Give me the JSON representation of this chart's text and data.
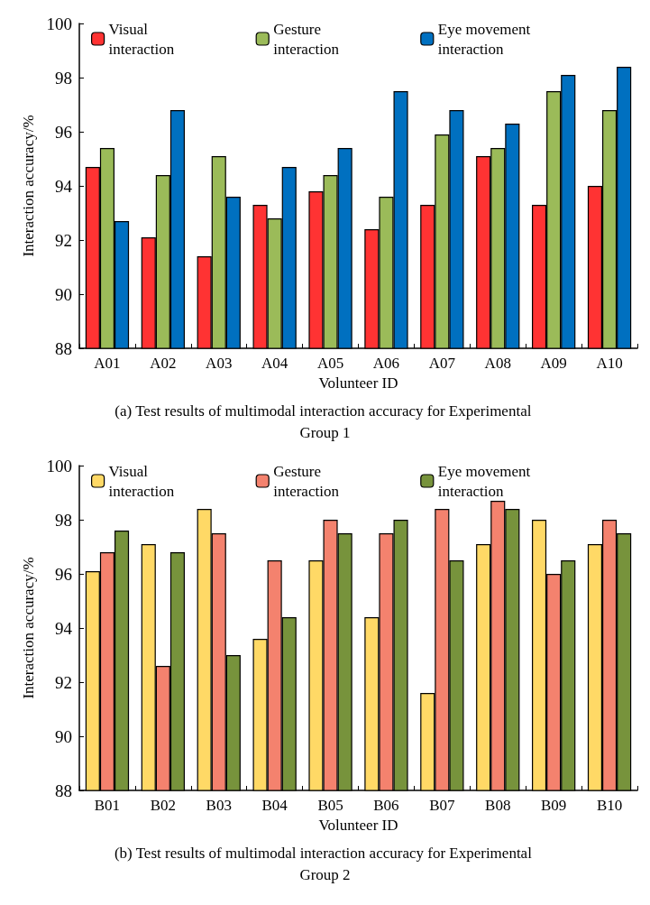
{
  "chart_data": [
    {
      "type": "bar",
      "title": "(a) Test results of multimodal interaction accuracy for Experimental Group 1",
      "xlabel": "Volunteer ID",
      "ylabel": "Interaction accuracy/%",
      "categories": [
        "A01",
        "A02",
        "A03",
        "A04",
        "A05",
        "A06",
        "A07",
        "A08",
        "A09",
        "A10"
      ],
      "series": [
        {
          "name": "Visual interaction",
          "color": "#ff3333",
          "values": [
            94.7,
            92.1,
            91.4,
            93.3,
            93.8,
            92.4,
            93.3,
            95.1,
            93.3,
            94.0
          ]
        },
        {
          "name": "Gesture interaction",
          "color": "#9bbb59",
          "values": [
            95.4,
            94.4,
            95.1,
            92.8,
            94.4,
            93.6,
            95.9,
            95.4,
            97.5,
            96.8
          ]
        },
        {
          "name": "Eye movement interaction",
          "color": "#0070c0",
          "values": [
            92.7,
            96.8,
            93.6,
            94.7,
            95.4,
            97.5,
            96.8,
            96.3,
            98.1,
            98.4
          ]
        }
      ],
      "ylim": [
        88,
        100
      ],
      "yticks": [
        88,
        90,
        92,
        94,
        96,
        98,
        100
      ],
      "grid": false,
      "legend": "top"
    },
    {
      "type": "bar",
      "title": "(b) Test results of multimodal interaction accuracy for Experimental Group 2",
      "xlabel": "Volunteer ID",
      "ylabel": "Interaction accuracy/%",
      "categories": [
        "B01",
        "B02",
        "B03",
        "B04",
        "B05",
        "B06",
        "B07",
        "B08",
        "B09",
        "B10"
      ],
      "series": [
        {
          "name": "Visual interaction",
          "color": "#ffd966",
          "values": [
            96.1,
            97.1,
            98.4,
            93.6,
            96.5,
            94.4,
            91.6,
            97.1,
            98.0,
            97.1
          ]
        },
        {
          "name": "Gesture interaction",
          "color": "#f4826e",
          "values": [
            96.8,
            92.6,
            97.5,
            96.5,
            98.0,
            97.5,
            98.4,
            98.7,
            96.0,
            98.0
          ]
        },
        {
          "name": "Eye movement interaction",
          "color": "#77933c",
          "values": [
            97.6,
            96.8,
            93.0,
            94.4,
            97.5,
            98.0,
            96.5,
            98.4,
            96.5,
            97.5
          ]
        }
      ],
      "ylim": [
        88,
        100
      ],
      "yticks": [
        88,
        90,
        92,
        94,
        96,
        98,
        100
      ],
      "grid": false,
      "legend": "top"
    }
  ]
}
